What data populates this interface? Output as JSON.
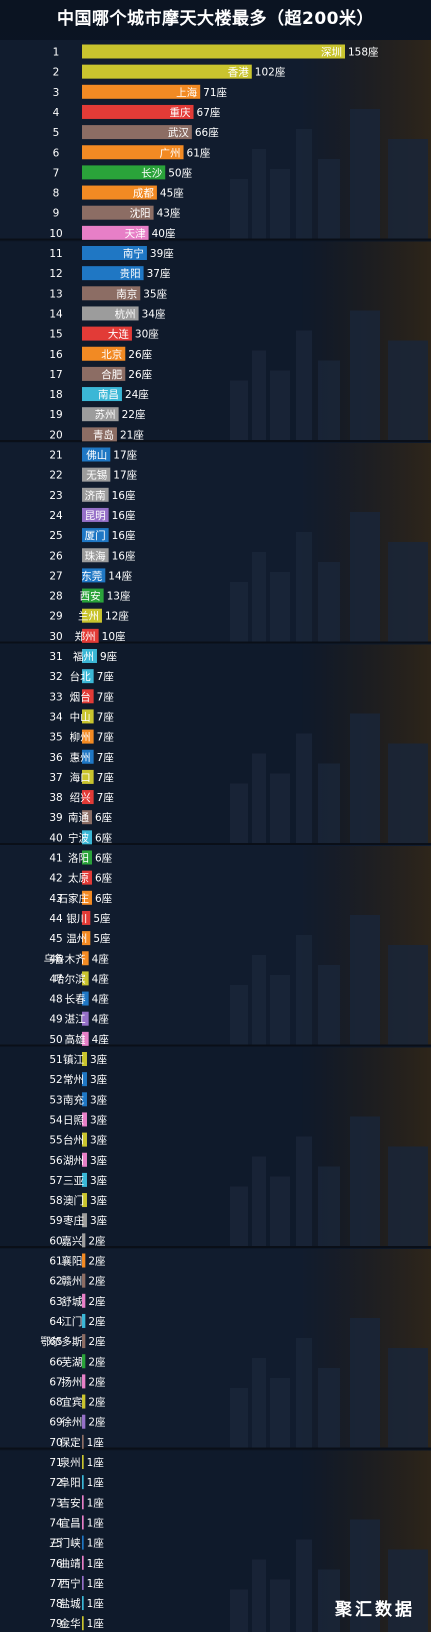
{
  "watermark": "聚汇数据",
  "colors": {
    "background": "#0d1624",
    "label_text": "#ffffff",
    "palette": [
      "#1f77c4",
      "#c9c42e",
      "#f28a23",
      "#e23b37",
      "#8c6d64",
      "#2aa33a",
      "#e77fc7",
      "#3bb7d6",
      "#9c9c9c",
      "#9670c8"
    ]
  },
  "chart_data": {
    "type": "bar",
    "orientation": "horizontal",
    "title": "中国哪个城市摩天大楼最多（超200米）",
    "unit": "座",
    "xlim": [
      0,
      158
    ],
    "grid": false,
    "legend": "none",
    "ranks": [
      1,
      2,
      3,
      4,
      5,
      6,
      7,
      8,
      9,
      10,
      11,
      12,
      13,
      14,
      15,
      16,
      17,
      18,
      19,
      20,
      21,
      22,
      23,
      24,
      25,
      26,
      27,
      28,
      29,
      30,
      31,
      32,
      33,
      34,
      35,
      36,
      37,
      38,
      39,
      40,
      41,
      42,
      43,
      44,
      45,
      46,
      47,
      48,
      49,
      50,
      51,
      52,
      53,
      54,
      55,
      56,
      57,
      58,
      59,
      60,
      61,
      62,
      63,
      64,
      65,
      66,
      67,
      68,
      69,
      70,
      71,
      72,
      73,
      74,
      75,
      76,
      77,
      78,
      79
    ],
    "categories": [
      "深圳",
      "香港",
      "上海",
      "重庆",
      "武汉",
      "广州",
      "长沙",
      "成都",
      "沈阳",
      "天津",
      "南宁",
      "贵阳",
      "南京",
      "杭州",
      "大连",
      "北京",
      "合肥",
      "南昌",
      "苏州",
      "青岛",
      "佛山",
      "无锡",
      "济南",
      "昆明",
      "厦门",
      "珠海",
      "东莞",
      "西安",
      "兰州",
      "郑州",
      "福州",
      "台北",
      "烟台",
      "中山",
      "柳州",
      "惠州",
      "海口",
      "绍兴",
      "南通",
      "宁波",
      "洛阳",
      "太原",
      "石家庄",
      "银川",
      "温州",
      "乌鲁木齐",
      "哈尔滨",
      "长春",
      "湛江",
      "高雄",
      "镇江",
      "常州",
      "南充",
      "日照",
      "台州",
      "湖州",
      "三亚",
      "澳门",
      "枣庄",
      "嘉兴",
      "襄阳",
      "赣州",
      "舒城",
      "江门",
      "鄂尔多斯",
      "芜湖",
      "扬州",
      "宜宾",
      "徐州",
      "保定",
      "泉州",
      "阜阳",
      "吉安",
      "宜昌",
      "三门峡",
      "曲靖",
      "西宁",
      "盐城",
      "金华"
    ],
    "values": [
      158,
      102,
      71,
      67,
      66,
      61,
      50,
      45,
      43,
      40,
      39,
      37,
      35,
      34,
      30,
      26,
      26,
      24,
      22,
      21,
      17,
      17,
      16,
      16,
      16,
      16,
      14,
      13,
      12,
      10,
      9,
      7,
      7,
      7,
      7,
      7,
      7,
      7,
      6,
      6,
      6,
      6,
      6,
      5,
      5,
      4,
      4,
      4,
      4,
      4,
      3,
      3,
      3,
      3,
      3,
      3,
      3,
      3,
      3,
      2,
      2,
      2,
      2,
      2,
      2,
      2,
      2,
      2,
      2,
      1,
      1,
      1,
      1,
      1,
      1,
      1,
      1,
      1,
      1
    ],
    "colors": [
      "#c9c42e",
      "#c9c42e",
      "#f28a23",
      "#e23b37",
      "#8c6d64",
      "#f28a23",
      "#2aa33a",
      "#f28a23",
      "#8c6d64",
      "#e77fc7",
      "#1f77c4",
      "#1f77c4",
      "#8c6d64",
      "#9c9c9c",
      "#e23b37",
      "#f28a23",
      "#8c6d64",
      "#3bb7d6",
      "#9c9c9c",
      "#8c6d64",
      "#1f77c4",
      "#9c9c9c",
      "#9c9c9c",
      "#9670c8",
      "#1f77c4",
      "#9c9c9c",
      "#1f77c4",
      "#2aa33a",
      "#c9c42e",
      "#e23b37",
      "#3bb7d6",
      "#3bb7d6",
      "#e23b37",
      "#c9c42e",
      "#f28a23",
      "#1f77c4",
      "#c9c42e",
      "#e23b37",
      "#8c6d64",
      "#3bb7d6",
      "#2aa33a",
      "#e23b37",
      "#f28a23",
      "#e23b37",
      "#f28a23",
      "#f28a23",
      "#c9c42e",
      "#1f77c4",
      "#9670c8",
      "#e77fc7",
      "#c9c42e",
      "#1f77c4",
      "#1f77c4",
      "#e77fc7",
      "#c9c42e",
      "#e77fc7",
      "#3bb7d6",
      "#c9c42e",
      "#9c9c9c",
      "#9c9c9c",
      "#f28a23",
      "#8c6d64",
      "#e77fc7",
      "#3bb7d6",
      "#8c6d64",
      "#2aa33a",
      "#e77fc7",
      "#c9c42e",
      "#9670c8",
      "#8c6d64",
      "#c9c42e",
      "#3bb7d6",
      "#e77fc7",
      "#e77fc7",
      "#1f77c4",
      "#e77fc7",
      "#9670c8",
      "#3bb7d6",
      "#c9c42e"
    ]
  }
}
